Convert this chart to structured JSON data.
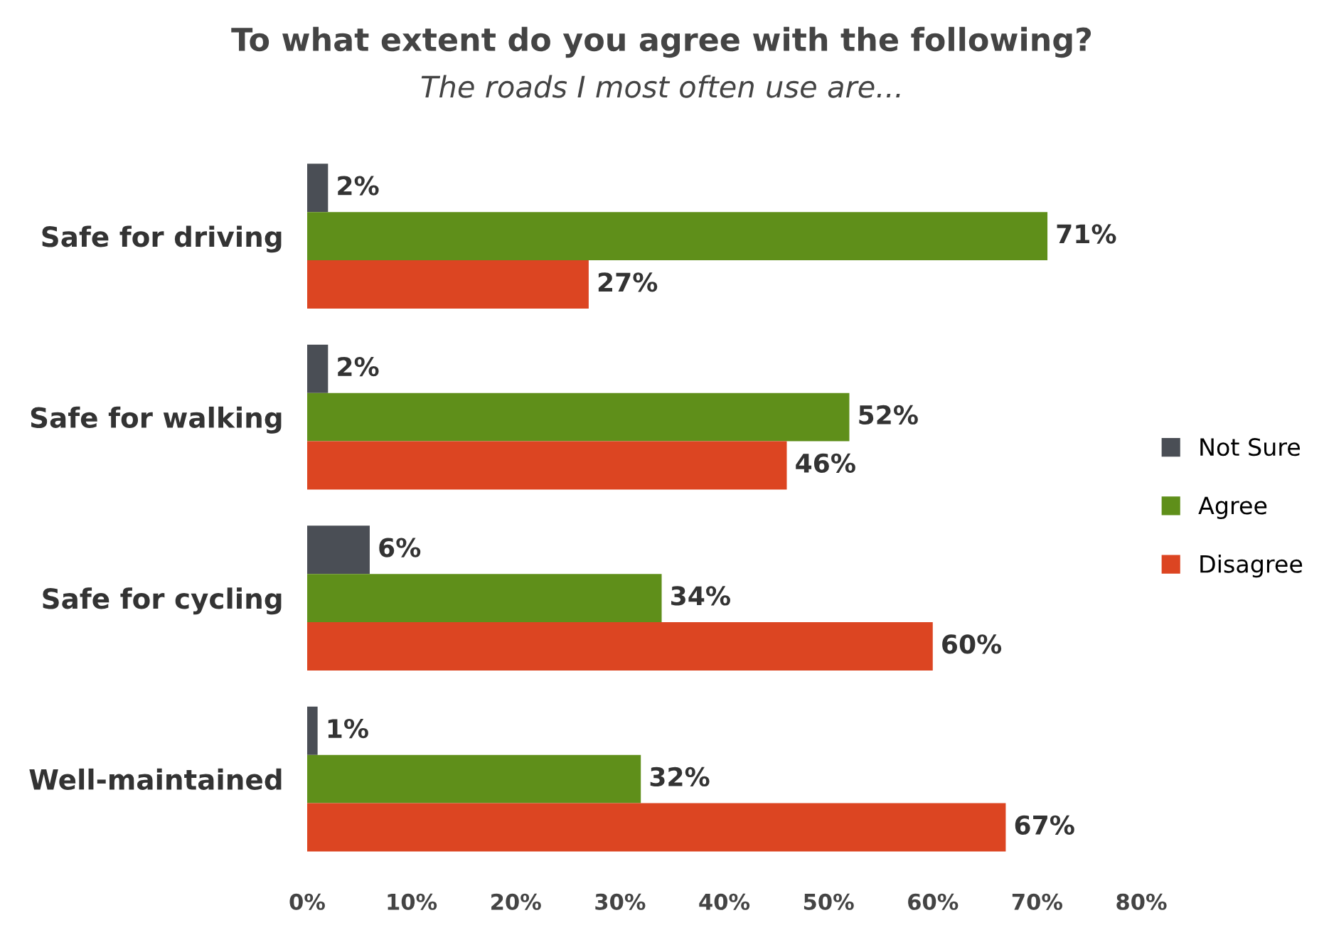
{
  "chart_data": {
    "type": "bar",
    "orientation": "horizontal",
    "title": "To what extent do you agree with the following?",
    "subtitle": "The roads I most often use are...",
    "categories": [
      "Safe for driving",
      "Safe for walking",
      "Safe for cycling",
      "Well-maintained"
    ],
    "series": [
      {
        "name": "Not Sure",
        "color": "#4a4e55",
        "values": [
          2,
          2,
          6,
          1
        ],
        "value_labels": [
          "2%",
          "2%",
          "6%",
          "1%"
        ]
      },
      {
        "name": "Agree",
        "color": "#5f8f1a",
        "values": [
          71,
          52,
          34,
          32
        ],
        "value_labels": [
          "71%",
          "52%",
          "34%",
          "32%"
        ]
      },
      {
        "name": "Disagree",
        "color": "#dc4522",
        "values": [
          27,
          46,
          60,
          67
        ],
        "value_labels": [
          "27%",
          "46%",
          "60%",
          "67%"
        ]
      }
    ],
    "xlim": [
      0,
      80
    ],
    "xticks": [
      {
        "value": 0,
        "label": "0%"
      },
      {
        "value": 10,
        "label": "10%"
      },
      {
        "value": 20,
        "label": "20%"
      },
      {
        "value": 30,
        "label": "30%"
      },
      {
        "value": 40,
        "label": "40%"
      },
      {
        "value": 50,
        "label": "50%"
      },
      {
        "value": 60,
        "label": "60%"
      },
      {
        "value": 70,
        "label": "70%"
      },
      {
        "value": 80,
        "label": "80%"
      }
    ],
    "grid": false,
    "legend": "right"
  }
}
